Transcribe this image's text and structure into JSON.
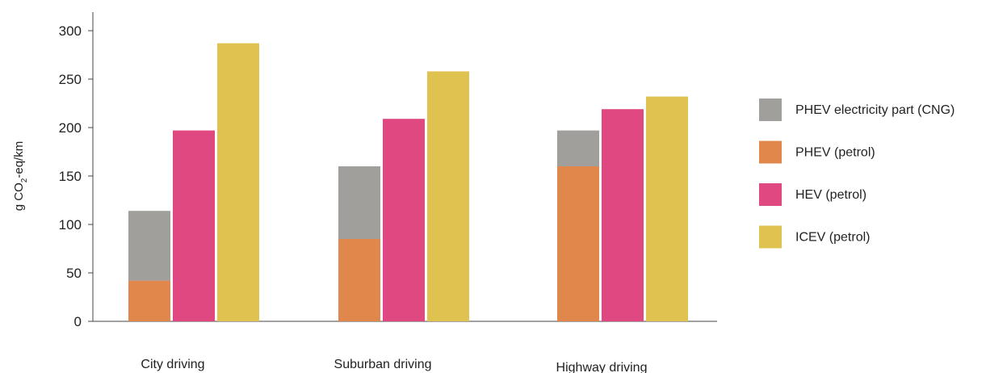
{
  "chart_data": {
    "type": "bar",
    "stacked_first_bar": true,
    "categories": [
      "City driving",
      "Suburban driving",
      "Highway driving"
    ],
    "series": [
      {
        "name": "PHEV electricity part (CNG)",
        "color": "#a09f9c",
        "stack": "phev",
        "values": [
          72,
          75,
          37
        ]
      },
      {
        "name": "PHEV (petrol)",
        "color": "#e0884c",
        "stack": "phev",
        "values": [
          42,
          85,
          160
        ]
      },
      {
        "name": "HEV (petrol)",
        "color": "#e04882",
        "stack": "hev",
        "values": [
          197,
          209,
          219
        ]
      },
      {
        "name": "ICEV (petrol)",
        "color": "#e0c250",
        "stack": "icev",
        "values": [
          287,
          258,
          232
        ]
      }
    ],
    "ylabel_parts": {
      "prefix": "g CO",
      "subscript": "2",
      "suffix": "-eq/km"
    },
    "ylim": [
      0,
      300
    ],
    "yticks": [
      0,
      50,
      100,
      150,
      200,
      250,
      300
    ],
    "legend_position": "right",
    "grid": false
  }
}
